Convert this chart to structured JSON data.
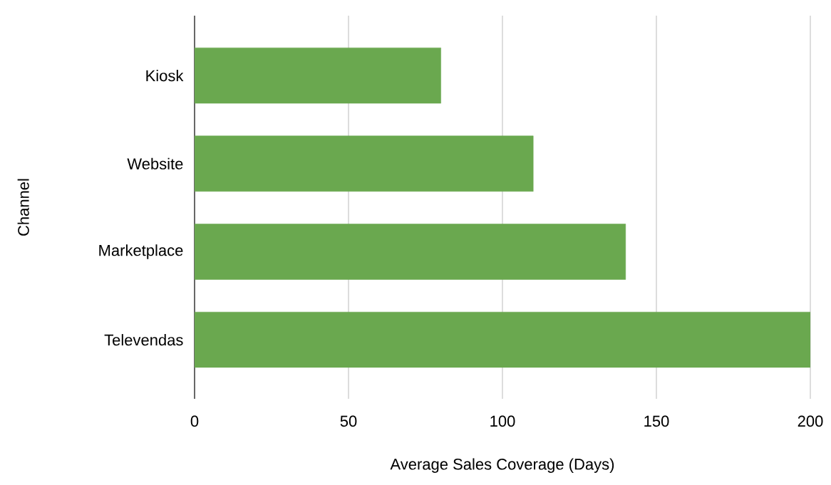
{
  "chart_data": {
    "type": "bar",
    "orientation": "horizontal",
    "xlabel": "Average Sales Coverage (Days)",
    "ylabel": "Channel",
    "categories": [
      "Kiosk",
      "Website",
      "Marketplace",
      "Televendas"
    ],
    "values": [
      80,
      110,
      140,
      200
    ],
    "color": "#6aa84f",
    "xlim": [
      0,
      200
    ],
    "xticks": [
      0,
      50,
      100,
      150,
      200
    ],
    "grid": "x"
  }
}
